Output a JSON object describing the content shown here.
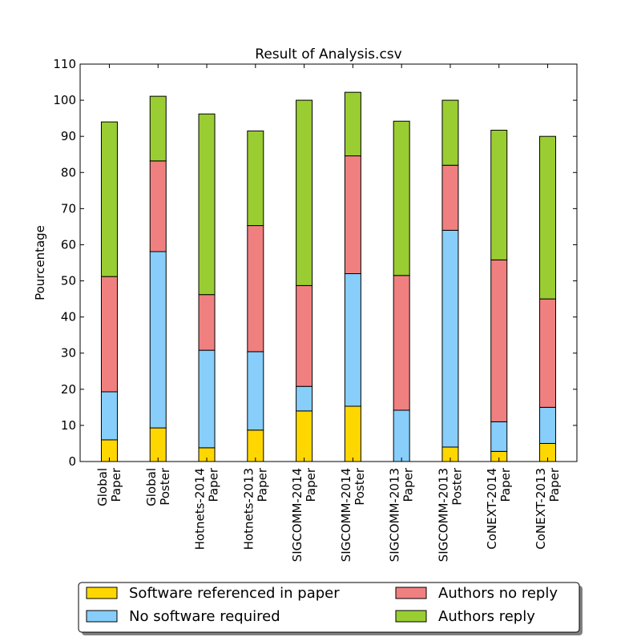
{
  "chart_data": {
    "type": "bar",
    "stacked": true,
    "title": "Result of Analysis.csv",
    "xlabel": "",
    "ylabel": "Pourcentage",
    "ylim": [
      0,
      110
    ],
    "yticks": [
      0,
      10,
      20,
      30,
      40,
      50,
      60,
      70,
      80,
      90,
      100,
      110
    ],
    "grid": false,
    "legend_position": "bottom",
    "categories": [
      [
        "Global",
        "Paper"
      ],
      [
        "Global",
        "Poster"
      ],
      [
        "Hotnets-2014",
        "Paper"
      ],
      [
        "Hotnets-2013",
        "Paper"
      ],
      [
        "SIGCOMM-2014",
        "Paper"
      ],
      [
        "SIGCOMM-2014",
        "Poster"
      ],
      [
        "SIGCOMM-2013",
        "Paper"
      ],
      [
        "SIGCOMM-2013",
        "Poster"
      ],
      [
        "CoNEXT-2014",
        "Paper"
      ],
      [
        "CoNEXT-2013",
        "Paper"
      ]
    ],
    "series": [
      {
        "name": "Software referenced in paper",
        "color": "#ffd700",
        "values": [
          6.0,
          9.3,
          3.8,
          8.7,
          14.0,
          15.3,
          0,
          4.0,
          2.8,
          5.0
        ]
      },
      {
        "name": "No software required",
        "color": "#87cefa",
        "values": [
          13.3,
          48.8,
          27.0,
          21.7,
          6.8,
          36.7,
          14.2,
          60.0,
          8.2,
          10.0
        ]
      },
      {
        "name": "Authors no reply",
        "color": "#f08080",
        "values": [
          31.9,
          25.1,
          15.4,
          34.9,
          27.9,
          32.6,
          37.3,
          18.0,
          44.8,
          30.0
        ]
      },
      {
        "name": "Authors reply",
        "color": "#9acd32",
        "values": [
          42.8,
          17.9,
          50.0,
          26.2,
          51.3,
          17.6,
          42.7,
          18.0,
          35.9,
          45.0
        ]
      }
    ]
  }
}
